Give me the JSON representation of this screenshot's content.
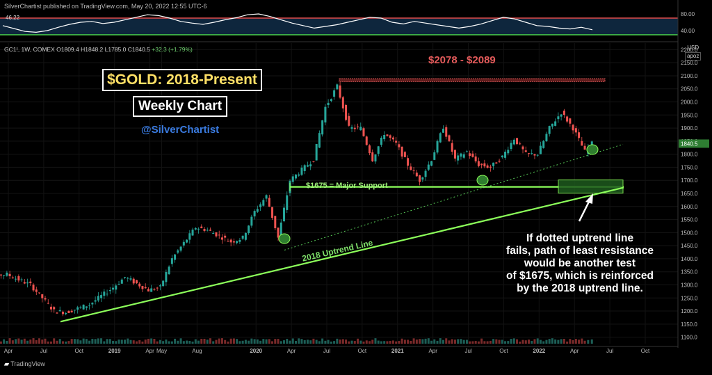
{
  "header": {
    "published": "SilverChartist published on TradingView.com, May 20, 2022 12:55 UTC-6"
  },
  "ohlc_line": {
    "symbol": "GC1!, 1W, COMEX",
    "open": "O1809.4",
    "high": "H1848.2",
    "low": "L1785.0",
    "close": "C1840.5",
    "change": "+32.3 (+1.79%)"
  },
  "price_axis": {
    "currency": "USD",
    "mode": "apoz"
  },
  "annotations": {
    "title": "$GOLD: 2018-Present",
    "subtitle": "Weekly Chart",
    "handle": "@SilverChartist",
    "resistance": "$2078 - $2089",
    "support": "$1675 = Major Support",
    "uptrend": "2018 Uptrend Line",
    "note_lines": [
      "If dotted uptrend line",
      "fails, path of least resistance",
      "would be another test",
      "of $1675, which is reinforced",
      "by the 2018 uptrend line."
    ]
  },
  "footer": {
    "brand": "TradingView"
  },
  "colors": {
    "up": "#26a69a",
    "down": "#ef5350",
    "support": "#8cff5a",
    "resistance": "#e45b5b",
    "rsi": "#ffffff",
    "rsi_upper": "#e04a4a",
    "rsi_lower": "#4cd54c"
  },
  "chart_data": {
    "type": "candlestick",
    "interval": "1W",
    "ylim": [
      1075,
      2225
    ],
    "y_ticks": [
      1100,
      1150,
      1200,
      1250,
      1300,
      1350,
      1400,
      1450,
      1500,
      1550,
      1600,
      1650,
      1700,
      1750,
      1800,
      1850,
      1900,
      1950,
      2000,
      2050,
      2100,
      2150,
      2200
    ],
    "y_tick_labels": [
      "1100.0",
      "1150.0",
      "1200.0",
      "1250.0",
      "1300.0",
      "1350.0",
      "1400.0",
      "1450.0",
      "1500.0",
      "1550.0",
      "1600.0",
      "1650.0",
      "1700.0",
      "1750.0",
      "1800.0",
      "1850.0",
      "1900.0",
      "1950.0",
      "2000.0",
      "2050.0",
      "2100.0",
      "2150.0",
      "2200.0"
    ],
    "x_ticks": [
      "Apr",
      "Jul",
      "Oct",
      "2019",
      "Apr",
      "May",
      "Aug",
      "2020",
      "Apr",
      "Jul",
      "Oct",
      "2021",
      "Apr",
      "Jul",
      "Oct",
      "2022",
      "Apr",
      "Jul",
      "Oct"
    ],
    "x_tick_dates": [
      "2018-04",
      "2018-07",
      "2018-10",
      "2019-01",
      "2019-04",
      "2019-05",
      "2019-08",
      "2020-01",
      "2020-04",
      "2020-07",
      "2020-10",
      "2021-01",
      "2021-04",
      "2021-07",
      "2021-10",
      "2022-01",
      "2022-04",
      "2022-07",
      "2022-10"
    ],
    "price_path": [
      [
        "2018-01",
        1335
      ],
      [
        "2018-04",
        1340
      ],
      [
        "2018-06",
        1300
      ],
      [
        "2018-08",
        1200
      ],
      [
        "2018-09",
        1195
      ],
      [
        "2018-11",
        1225
      ],
      [
        "2019-01",
        1290
      ],
      [
        "2019-02",
        1330
      ],
      [
        "2019-04",
        1280
      ],
      [
        "2019-05",
        1290
      ],
      [
        "2019-06",
        1400
      ],
      [
        "2019-08",
        1520
      ],
      [
        "2019-09",
        1510
      ],
      [
        "2019-11",
        1465
      ],
      [
        "2019-12",
        1480
      ],
      [
        "2020-01",
        1580
      ],
      [
        "2020-02",
        1640
      ],
      [
        "2020-03",
        1480
      ],
      [
        "2020-04",
        1700
      ],
      [
        "2020-06",
        1780
      ],
      [
        "2020-07",
        1980
      ],
      [
        "2020-08",
        2060
      ],
      [
        "2020-09",
        1900
      ],
      [
        "2020-10",
        1900
      ],
      [
        "2020-11",
        1780
      ],
      [
        "2020-12",
        1880
      ],
      [
        "2021-01",
        1840
      ],
      [
        "2021-02",
        1760
      ],
      [
        "2021-03",
        1700
      ],
      [
        "2021-04",
        1780
      ],
      [
        "2021-05",
        1905
      ],
      [
        "2021-06",
        1780
      ],
      [
        "2021-07",
        1810
      ],
      [
        "2021-08",
        1760
      ],
      [
        "2021-09",
        1750
      ],
      [
        "2021-10",
        1790
      ],
      [
        "2021-11",
        1860
      ],
      [
        "2021-12",
        1800
      ],
      [
        "2022-01",
        1800
      ],
      [
        "2022-02",
        1900
      ],
      [
        "2022-03",
        1960
      ],
      [
        "2022-04",
        1900
      ],
      [
        "2022-05",
        1810
      ],
      [
        "2022-05-20",
        1840.5
      ]
    ],
    "last_price": 1840.5,
    "last_price_label": "1840.5",
    "resistance_zone": [
      2078,
      2089
    ],
    "support_level": 1675,
    "uptrend_line": [
      [
        "2018-08",
        1170
      ],
      [
        "2022-10",
        1675
      ]
    ],
    "dotted_uptrend_line": [
      [
        "2020-03",
        1465
      ],
      [
        "2022-10",
        1830
      ]
    ],
    "rsi": {
      "period_value": "46.22",
      "ylim": [
        20,
        90
      ],
      "ticks": [
        40,
        80
      ],
      "tick_labels": [
        "40.00",
        "80.00"
      ],
      "bands": [
        30,
        70
      ],
      "values": [
        52,
        45,
        38,
        36,
        40,
        48,
        55,
        60,
        62,
        57,
        60,
        66,
        72,
        78,
        76,
        70,
        62,
        58,
        55,
        60,
        66,
        71,
        78,
        80,
        74,
        66,
        58,
        52,
        46,
        50,
        54,
        60,
        66,
        72,
        70,
        60,
        56,
        62,
        58,
        54,
        50,
        46,
        50,
        56,
        64,
        72,
        68,
        60,
        52,
        50,
        46,
        44,
        48,
        42
      ]
    }
  }
}
